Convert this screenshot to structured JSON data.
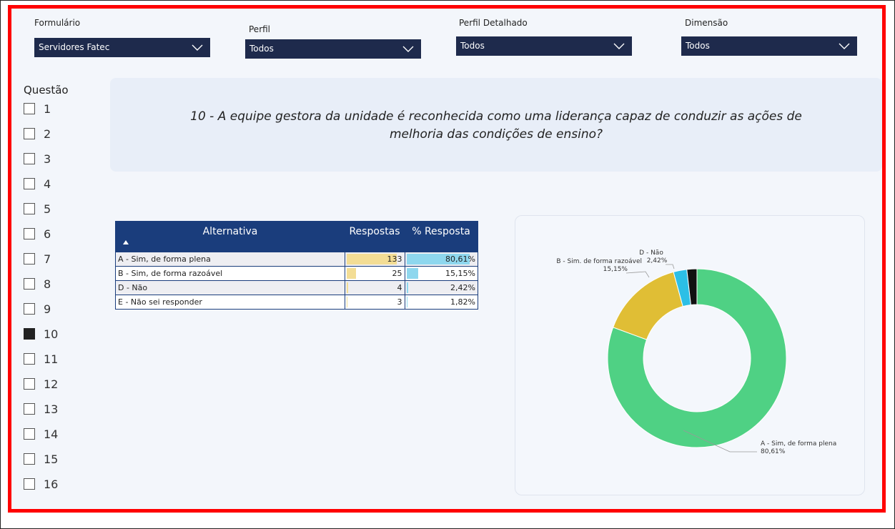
{
  "filters": [
    {
      "label": "Formulário",
      "value": "Servidores Fatec"
    },
    {
      "label": "Perfil",
      "value": "Todos"
    },
    {
      "label": "Perfil Detalhado",
      "value": "Todos"
    },
    {
      "label": "Dimensão",
      "value": "Todos"
    }
  ],
  "questao": {
    "label": "Questão",
    "options": [
      "1",
      "2",
      "3",
      "4",
      "5",
      "6",
      "7",
      "8",
      "9",
      "10",
      "11",
      "12",
      "13",
      "14",
      "15",
      "16"
    ],
    "selected": "10"
  },
  "question_text": "10 - A equipe gestora da unidade é reconhecida como uma liderança capaz de conduzir as ações de melhoria das condições de ensino?",
  "table": {
    "headers": [
      "Alternativa",
      "Respostas",
      "% Resposta"
    ],
    "rows": [
      [
        "A - Sim, de forma plena",
        133,
        "80,61%"
      ],
      [
        "B - Sim, de forma razoável",
        25,
        "15,15%"
      ],
      [
        "D - Não",
        4,
        "2,42%"
      ],
      [
        "E - Não sei responder",
        3,
        "1,82%"
      ]
    ]
  },
  "chart_data": {
    "type": "pie",
    "donut": true,
    "categories": [
      "A - Sim, de forma plena",
      "B - Sim. de forma razoável",
      "D - Não",
      null
    ],
    "values": [
      80.61,
      15.15,
      2.42,
      1.82
    ],
    "value_labels": [
      "80,61%",
      "15,15%",
      "2,42%",
      null
    ],
    "colors": [
      "#4fd184",
      "#e0be35",
      "#2cbfe6",
      "#111111"
    ]
  }
}
